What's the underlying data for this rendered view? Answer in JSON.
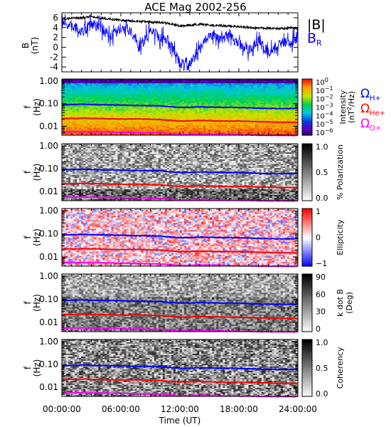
{
  "title": "ACE Mag 2002-256",
  "xlabel": "Time (UT)",
  "x_ticks": [
    "00:00:00",
    "06:00:00",
    "12:00:00",
    "18:00:00",
    "24:00:00"
  ],
  "chart_data": [
    {
      "type": "line",
      "panel": "magnetic-field",
      "ylabel": "B",
      "yunit": "(nT)",
      "ylim": [
        -5,
        7
      ],
      "yticks": [
        "6",
        "4",
        "2",
        "0",
        "-2",
        "-4"
      ],
      "legend": [
        "|B|",
        "B"
      ],
      "legend_sub": [
        "",
        "R"
      ],
      "colors": {
        "B_mag": "#000000",
        "B_R": "#0000ff"
      },
      "x_hours": [
        0,
        1,
        2,
        3,
        4,
        5,
        6,
        7,
        8,
        9,
        10,
        11,
        12,
        13,
        14,
        15,
        16,
        17,
        18,
        19,
        20,
        21,
        22,
        23,
        24
      ],
      "series": [
        {
          "key": "B_mag",
          "values": [
            5.7,
            5.9,
            6.0,
            6.3,
            5.9,
            5.7,
            5.5,
            5.4,
            5.3,
            5.1,
            5.0,
            4.8,
            4.3,
            4.5,
            4.7,
            4.5,
            4.4,
            4.3,
            4.2,
            4.0,
            3.9,
            3.9,
            3.8,
            3.9,
            3.9
          ]
        },
        {
          "key": "B_R",
          "values": [
            4.8,
            4.3,
            3.2,
            4.6,
            4.0,
            1.8,
            3.9,
            3.2,
            0.2,
            3.6,
            2.1,
            1.2,
            -3.2,
            -3.4,
            -0.6,
            2.8,
            1.5,
            2.5,
            0.8,
            -0.6,
            1.2,
            -1.1,
            0.6,
            1.1,
            1.6
          ]
        }
      ]
    },
    {
      "type": "heatmap",
      "panel": "intensity",
      "ylabel": "f",
      "yunit": "(Hz)",
      "yticks": [
        "1.00",
        "0.10",
        "0.01"
      ],
      "colorbar_label": "Intensity",
      "colorbar_unit": "(nT",
      "colorbar_unit_tail": "/Hz)",
      "colorbar_ticks": [
        "10",
        "10",
        "10",
        "10",
        "10",
        "10",
        "10"
      ],
      "colorbar_exps": [
        "0",
        "−1",
        "−2",
        "−3",
        "−4",
        "−5",
        "−6"
      ],
      "colorbar_range": [
        -6.5,
        0.3
      ],
      "legend": [
        "Ω",
        "Ω",
        "Ω"
      ],
      "legend_sub": [
        "H+",
        "He+",
        "O+"
      ]
    },
    {
      "type": "heatmap",
      "panel": "polarization",
      "ylabel": "f",
      "yunit": "(Hz)",
      "yticks": [
        "1.00",
        "0.10",
        "0.01"
      ],
      "colorbar_label": "% Polarization",
      "colorbar_ticks": [
        "1.0",
        "0.5",
        "0.0"
      ],
      "colorbar_range": [
        0,
        1
      ]
    },
    {
      "type": "heatmap",
      "panel": "ellipticity",
      "ylabel": "f",
      "yunit": "(Hz)",
      "yticks": [
        "1.00",
        "0.10",
        "0.01"
      ],
      "colorbar_label": "Ellipticity",
      "colorbar_ticks": [
        "1",
        "0",
        "−1"
      ],
      "colorbar_range": [
        -1,
        1
      ]
    },
    {
      "type": "heatmap",
      "panel": "k-dot-b",
      "ylabel": "f",
      "yunit": "(Hz)",
      "yticks": [
        "1.00",
        "0.10",
        "0.01"
      ],
      "colorbar_label": "k dot B",
      "colorbar_unit": "(Deg)",
      "colorbar_ticks": [
        "90",
        "60",
        "30",
        "0"
      ],
      "colorbar_range": [
        0,
        90
      ]
    },
    {
      "type": "heatmap",
      "panel": "coherency",
      "ylabel": "f",
      "yunit": "(Hz)",
      "yticks": [
        "1.00",
        "0.10",
        "0.01"
      ],
      "colorbar_label": "Coherency",
      "colorbar_ticks": [
        "1.0",
        "0.5",
        "0.0"
      ],
      "colorbar_range": [
        0,
        1
      ]
    }
  ],
  "gyrofrequency_lines": {
    "x_hours": [
      0,
      2,
      4,
      6,
      8,
      10,
      12,
      14,
      16,
      18,
      20,
      22,
      24
    ],
    "H_plus_Hz": [
      0.09,
      0.094,
      0.09,
      0.087,
      0.083,
      0.08,
      0.068,
      0.072,
      0.07,
      0.068,
      0.063,
      0.061,
      0.061
    ],
    "He_plus_Hz": [
      0.022,
      0.023,
      0.022,
      0.021,
      0.021,
      0.02,
      0.017,
      0.018,
      0.017,
      0.017,
      0.016,
      0.015,
      0.015
    ],
    "O_plus_Hz": [
      0.0056,
      0.0058,
      0.0056,
      0.0054,
      0.0052,
      0.005,
      0.0043,
      0.0045,
      0.0044,
      0.0042,
      0.004,
      0.0039,
      0.0039
    ],
    "colors": {
      "H_plus": "#0000ff",
      "He_plus": "#ff0000",
      "O_plus": "#ff00ff"
    }
  }
}
